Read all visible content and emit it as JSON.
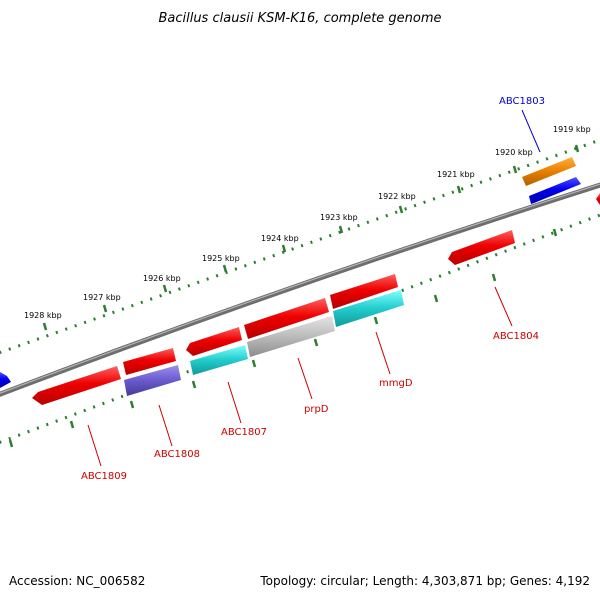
{
  "title": "Bacillus clausii KSM-K16, complete genome",
  "footer": {
    "accession": "Accession: NC_006582",
    "summary": "Topology: circular; Length: 4,303,871 bp; Genes: 4,192"
  },
  "ticks": [
    {
      "label": "1919 kbp"
    },
    {
      "label": "1920 kbp"
    },
    {
      "label": "1921 kbp"
    },
    {
      "label": "1922 kbp"
    },
    {
      "label": "1923 kbp"
    },
    {
      "label": "1924 kbp"
    },
    {
      "label": "1925 kbp"
    },
    {
      "label": "1926 kbp"
    },
    {
      "label": "1927 kbp"
    },
    {
      "label": "1928 kbp"
    }
  ],
  "gene_labels": [
    {
      "name": "ABC1803",
      "color": "#0000cc"
    },
    {
      "name": "ABC1804",
      "color": "#cc0000"
    },
    {
      "name": "mmgD",
      "color": "#cc0000"
    },
    {
      "name": "prpD",
      "color": "#cc0000"
    },
    {
      "name": "ABC1807",
      "color": "#cc0000"
    },
    {
      "name": "ABC1808",
      "color": "#cc0000"
    },
    {
      "name": "ABC1809",
      "color": "#cc0000"
    }
  ],
  "colors": {
    "backbone": "#808080",
    "tick_ring": "#2e7d32",
    "cds_red": "#ee0000",
    "cds_blue": "#0000ee",
    "cds_orange": "#e87f00",
    "cds_cyan": "#22cccc",
    "cds_purple": "#6a5acd",
    "cds_gray": "#bbbbbb"
  }
}
